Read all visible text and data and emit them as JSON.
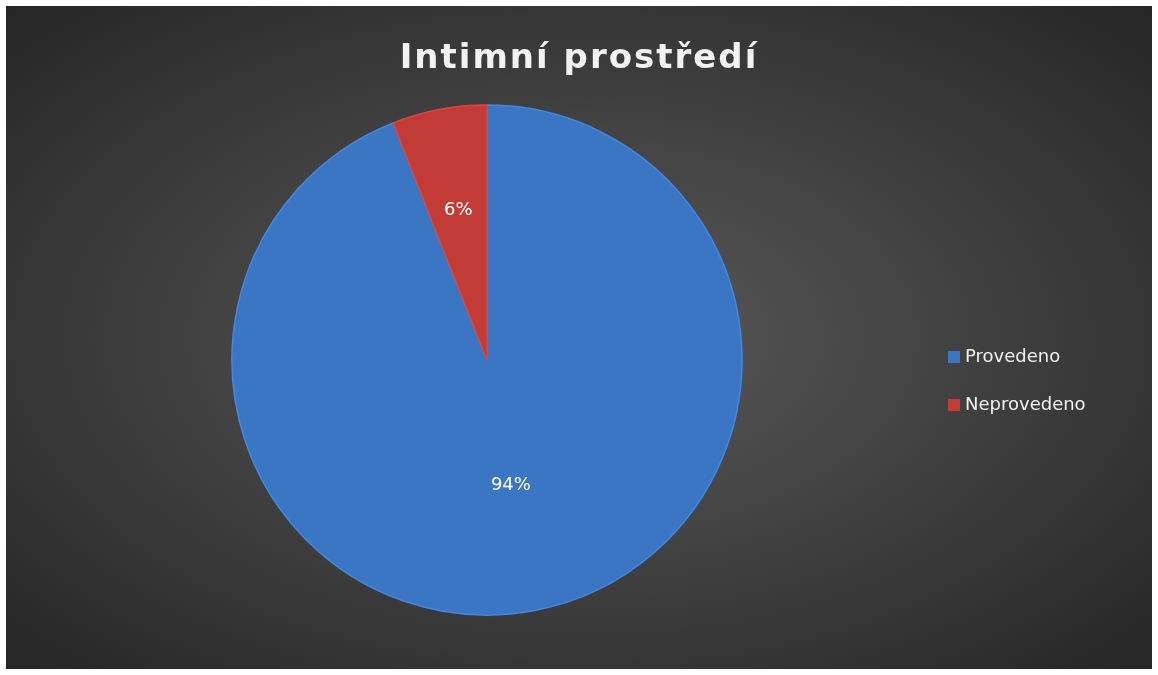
{
  "chart_data": {
    "type": "pie",
    "title": "Intimní prostředí",
    "categories": [
      "Provedeno",
      "Neprovedeno"
    ],
    "values": [
      94,
      6
    ],
    "colors": [
      "#3a76c4",
      "#c23b36"
    ],
    "value_labels": [
      "94%",
      "6%"
    ],
    "legend": "right"
  }
}
